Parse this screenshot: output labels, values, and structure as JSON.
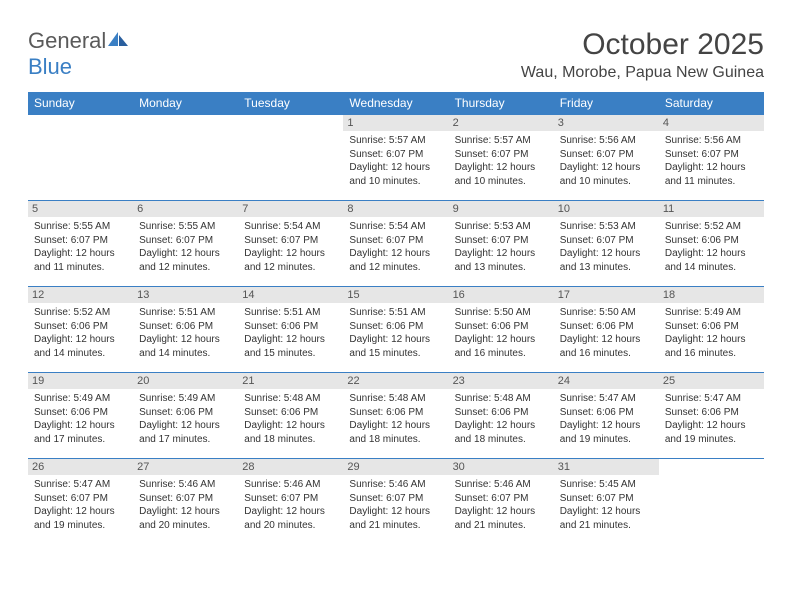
{
  "logo": {
    "text1": "General",
    "text2": "Blue"
  },
  "title": "October 2025",
  "location": "Wau, Morobe, Papua New Guinea",
  "colors": {
    "header_bg": "#3a7fc4",
    "header_text": "#ffffff",
    "day_num_bg": "#e6e6e6",
    "border": "#3a7fc4",
    "logo_gray": "#5a5a5a",
    "logo_blue": "#3a7fc4"
  },
  "weekdays": [
    "Sunday",
    "Monday",
    "Tuesday",
    "Wednesday",
    "Thursday",
    "Friday",
    "Saturday"
  ],
  "weeks": [
    [
      {
        "n": "",
        "sr": "",
        "ss": "",
        "dl": ""
      },
      {
        "n": "",
        "sr": "",
        "ss": "",
        "dl": ""
      },
      {
        "n": "",
        "sr": "",
        "ss": "",
        "dl": ""
      },
      {
        "n": "1",
        "sr": "5:57 AM",
        "ss": "6:07 PM",
        "dl": "12 hours and 10 minutes."
      },
      {
        "n": "2",
        "sr": "5:57 AM",
        "ss": "6:07 PM",
        "dl": "12 hours and 10 minutes."
      },
      {
        "n": "3",
        "sr": "5:56 AM",
        "ss": "6:07 PM",
        "dl": "12 hours and 10 minutes."
      },
      {
        "n": "4",
        "sr": "5:56 AM",
        "ss": "6:07 PM",
        "dl": "12 hours and 11 minutes."
      }
    ],
    [
      {
        "n": "5",
        "sr": "5:55 AM",
        "ss": "6:07 PM",
        "dl": "12 hours and 11 minutes."
      },
      {
        "n": "6",
        "sr": "5:55 AM",
        "ss": "6:07 PM",
        "dl": "12 hours and 12 minutes."
      },
      {
        "n": "7",
        "sr": "5:54 AM",
        "ss": "6:07 PM",
        "dl": "12 hours and 12 minutes."
      },
      {
        "n": "8",
        "sr": "5:54 AM",
        "ss": "6:07 PM",
        "dl": "12 hours and 12 minutes."
      },
      {
        "n": "9",
        "sr": "5:53 AM",
        "ss": "6:07 PM",
        "dl": "12 hours and 13 minutes."
      },
      {
        "n": "10",
        "sr": "5:53 AM",
        "ss": "6:07 PM",
        "dl": "12 hours and 13 minutes."
      },
      {
        "n": "11",
        "sr": "5:52 AM",
        "ss": "6:06 PM",
        "dl": "12 hours and 14 minutes."
      }
    ],
    [
      {
        "n": "12",
        "sr": "5:52 AM",
        "ss": "6:06 PM",
        "dl": "12 hours and 14 minutes."
      },
      {
        "n": "13",
        "sr": "5:51 AM",
        "ss": "6:06 PM",
        "dl": "12 hours and 14 minutes."
      },
      {
        "n": "14",
        "sr": "5:51 AM",
        "ss": "6:06 PM",
        "dl": "12 hours and 15 minutes."
      },
      {
        "n": "15",
        "sr": "5:51 AM",
        "ss": "6:06 PM",
        "dl": "12 hours and 15 minutes."
      },
      {
        "n": "16",
        "sr": "5:50 AM",
        "ss": "6:06 PM",
        "dl": "12 hours and 16 minutes."
      },
      {
        "n": "17",
        "sr": "5:50 AM",
        "ss": "6:06 PM",
        "dl": "12 hours and 16 minutes."
      },
      {
        "n": "18",
        "sr": "5:49 AM",
        "ss": "6:06 PM",
        "dl": "12 hours and 16 minutes."
      }
    ],
    [
      {
        "n": "19",
        "sr": "5:49 AM",
        "ss": "6:06 PM",
        "dl": "12 hours and 17 minutes."
      },
      {
        "n": "20",
        "sr": "5:49 AM",
        "ss": "6:06 PM",
        "dl": "12 hours and 17 minutes."
      },
      {
        "n": "21",
        "sr": "5:48 AM",
        "ss": "6:06 PM",
        "dl": "12 hours and 18 minutes."
      },
      {
        "n": "22",
        "sr": "5:48 AM",
        "ss": "6:06 PM",
        "dl": "12 hours and 18 minutes."
      },
      {
        "n": "23",
        "sr": "5:48 AM",
        "ss": "6:06 PM",
        "dl": "12 hours and 18 minutes."
      },
      {
        "n": "24",
        "sr": "5:47 AM",
        "ss": "6:06 PM",
        "dl": "12 hours and 19 minutes."
      },
      {
        "n": "25",
        "sr": "5:47 AM",
        "ss": "6:06 PM",
        "dl": "12 hours and 19 minutes."
      }
    ],
    [
      {
        "n": "26",
        "sr": "5:47 AM",
        "ss": "6:07 PM",
        "dl": "12 hours and 19 minutes."
      },
      {
        "n": "27",
        "sr": "5:46 AM",
        "ss": "6:07 PM",
        "dl": "12 hours and 20 minutes."
      },
      {
        "n": "28",
        "sr": "5:46 AM",
        "ss": "6:07 PM",
        "dl": "12 hours and 20 minutes."
      },
      {
        "n": "29",
        "sr": "5:46 AM",
        "ss": "6:07 PM",
        "dl": "12 hours and 21 minutes."
      },
      {
        "n": "30",
        "sr": "5:46 AM",
        "ss": "6:07 PM",
        "dl": "12 hours and 21 minutes."
      },
      {
        "n": "31",
        "sr": "5:45 AM",
        "ss": "6:07 PM",
        "dl": "12 hours and 21 minutes."
      },
      {
        "n": "",
        "sr": "",
        "ss": "",
        "dl": ""
      }
    ]
  ],
  "labels": {
    "sunrise": "Sunrise:",
    "sunset": "Sunset:",
    "daylight": "Daylight:"
  }
}
